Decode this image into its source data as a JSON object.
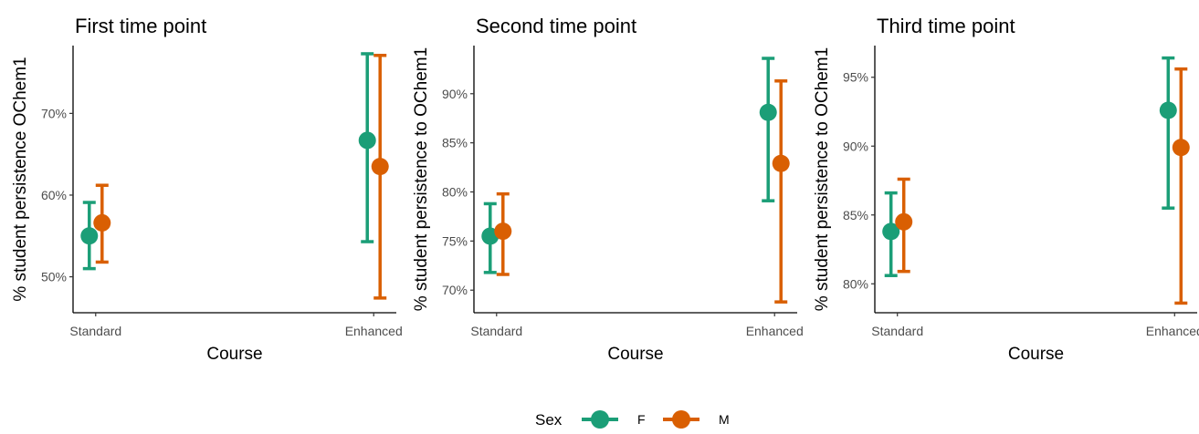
{
  "legend": {
    "title": "Sex",
    "items": [
      {
        "label": "F",
        "color": "#1b9e77"
      },
      {
        "label": "M",
        "color": "#d95f02"
      }
    ]
  },
  "chart_data": [
    {
      "type": "scatter",
      "title": "First time point",
      "xlabel": "Course",
      "ylabel": "% student persistence OChem1",
      "categories": [
        "Standard",
        "Enhanced"
      ],
      "ylim": [
        45.6,
        78.3
      ],
      "yticks": [
        50,
        60,
        70
      ],
      "ytick_labels": [
        "50%",
        "60%",
        "70%"
      ],
      "series": [
        {
          "name": "F",
          "values": [
            55.0,
            66.7
          ],
          "lower": [
            51.0,
            54.3
          ],
          "upper": [
            59.1,
            77.3
          ]
        },
        {
          "name": "M",
          "values": [
            56.6,
            63.5
          ],
          "lower": [
            51.8,
            47.4
          ],
          "upper": [
            61.2,
            77.1
          ]
        }
      ]
    },
    {
      "type": "scatter",
      "title": "Second time point",
      "xlabel": "Course",
      "ylabel": "% student persistence to OChem1",
      "categories": [
        "Standard",
        "Enhanced"
      ],
      "ylim": [
        67.7,
        94.9
      ],
      "yticks": [
        70,
        75,
        80,
        85,
        90
      ],
      "ytick_labels": [
        "70%",
        "75%",
        "80%",
        "85%",
        "90%"
      ],
      "series": [
        {
          "name": "F",
          "values": [
            75.5,
            88.1
          ],
          "lower": [
            71.8,
            79.1
          ],
          "upper": [
            78.8,
            93.6
          ]
        },
        {
          "name": "M",
          "values": [
            76.0,
            82.9
          ],
          "lower": [
            71.6,
            68.8
          ],
          "upper": [
            79.8,
            91.3
          ]
        }
      ]
    },
    {
      "type": "scatter",
      "title": "Third time point",
      "xlabel": "Course",
      "ylabel": "% student persistence to OChem1",
      "categories": [
        "Standard",
        "Enhanced"
      ],
      "ylim": [
        77.9,
        97.3
      ],
      "yticks": [
        80,
        85,
        90,
        95
      ],
      "ytick_labels": [
        "80%",
        "85%",
        "90%",
        "95%"
      ],
      "series": [
        {
          "name": "F",
          "values": [
            83.8,
            92.6
          ],
          "lower": [
            80.6,
            85.5
          ],
          "upper": [
            86.6,
            96.4
          ]
        },
        {
          "name": "M",
          "values": [
            84.5,
            89.9
          ],
          "lower": [
            80.9,
            78.6
          ],
          "upper": [
            87.6,
            95.6
          ]
        }
      ]
    }
  ]
}
